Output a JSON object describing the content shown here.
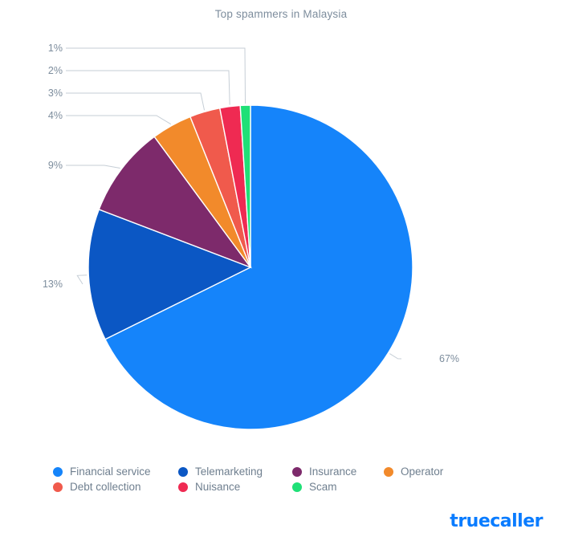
{
  "brand": {
    "name": "truecaller",
    "color": "#0a7cff"
  },
  "chart_data": {
    "type": "pie",
    "title": "Top spammers in Malaysia",
    "legend_position": "bottom",
    "series": [
      {
        "name": "Financial service",
        "value": 67,
        "label": "67%",
        "color": "#1584fa"
      },
      {
        "name": "Telemarketing",
        "value": 13,
        "label": "13%",
        "color": "#0b57c4"
      },
      {
        "name": "Insurance",
        "value": 9,
        "label": "9%",
        "color": "#7d2a6b"
      },
      {
        "name": "Operator",
        "value": 4,
        "label": "4%",
        "color": "#f28a2b"
      },
      {
        "name": "Debt collection",
        "value": 3,
        "label": "3%",
        "color": "#f05a4c"
      },
      {
        "name": "Nuisance",
        "value": 2,
        "label": "2%",
        "color": "#ef2a52"
      },
      {
        "name": "Scam",
        "value": 1,
        "label": "1%",
        "color": "#1fe077"
      }
    ]
  }
}
